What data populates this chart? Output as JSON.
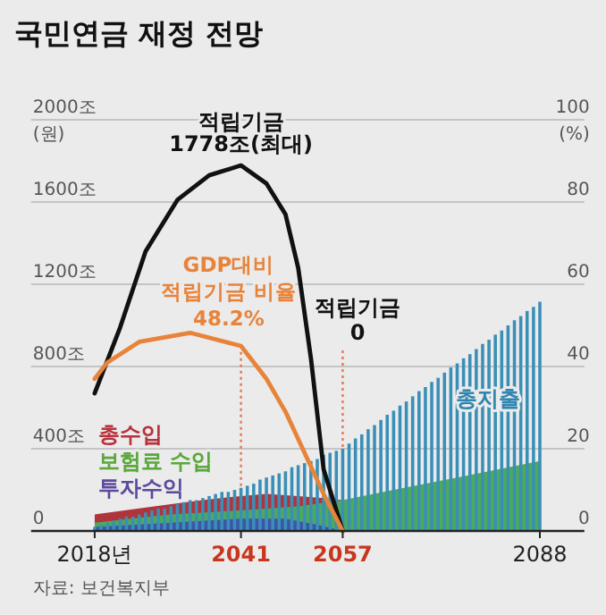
{
  "chart_data": {
    "type": "bar",
    "title": "국민연금 재정 전망",
    "ylabel": "(원)",
    "y2label": "(%)",
    "xlim": [
      2008,
      2095
    ],
    "ylim": [
      0,
      2000
    ],
    "y2lim": [
      0,
      100
    ],
    "xticks": [
      {
        "value": 2018,
        "label": "2018년"
      },
      2041,
      2057,
      2088
    ],
    "yticks": [
      0,
      {
        "value": 400,
        "label": "400조"
      },
      {
        "value": 800,
        "label": "800조"
      },
      {
        "value": 1200,
        "label": "1200조"
      },
      {
        "value": 1600,
        "label": "1600조"
      },
      {
        "value": 2000,
        "label": "2000조"
      }
    ],
    "y2ticks": [
      0,
      20,
      40,
      60,
      80,
      100
    ],
    "grid": "y",
    "legend": false,
    "ref_lines": [
      {
        "axis": "x",
        "value": 2041,
        "color": "#e07a55",
        "line_style": "dotted"
      },
      {
        "axis": "x",
        "value": 2057,
        "color": "#e07a55",
        "line_style": "dotted"
      }
    ],
    "annotations": [
      {
        "text": "1778조(최대)",
        "x": 2041,
        "y": 1778
      },
      "48.2%",
      "적립기금 0",
      "자료: 보건복지부"
    ],
    "series": [
      {
        "name": "적립기금",
        "type": "line",
        "color": "#111111",
        "x": [
          2018,
          2022,
          2026,
          2031,
          2036,
          2041,
          2045,
          2048,
          2050,
          2052,
          2054,
          2057
        ],
        "values": [
          670,
          990,
          1360,
          1610,
          1730,
          1778,
          1690,
          1540,
          1280,
          840,
          300,
          0
        ]
      },
      {
        "name": "GDP대비 적립기금 비율",
        "type": "line",
        "axis": "y2",
        "color": "#e8833a",
        "x": [
          2018,
          2020,
          2025,
          2033,
          2041,
          2045,
          2048,
          2051,
          2054,
          2057
        ],
        "values": [
          37,
          41,
          46,
          48.2,
          45,
          37,
          29,
          19,
          9,
          0
        ]
      },
      {
        "name": "총지출",
        "color": "#3a8fb7",
        "x": [
          2018,
          2019,
          2020,
          2021,
          2022,
          2023,
          2024,
          2025,
          2026,
          2027,
          2028,
          2029,
          2030,
          2031,
          2032,
          2033,
          2034,
          2035,
          2036,
          2037,
          2038,
          2039,
          2040,
          2041,
          2042,
          2043,
          2044,
          2045,
          2046,
          2047,
          2048,
          2049,
          2050,
          2051,
          2052,
          2053,
          2054,
          2055,
          2056,
          2057,
          2058,
          2059,
          2060,
          2061,
          2062,
          2063,
          2064,
          2065,
          2066,
          2067,
          2068,
          2069,
          2070,
          2071,
          2072,
          2073,
          2074,
          2075,
          2076,
          2077,
          2078,
          2079,
          2080,
          2081,
          2082,
          2083,
          2084,
          2085,
          2086,
          2087,
          2088
        ],
        "values": [
          20,
          30,
          40,
          50,
          60,
          70,
          70,
          80,
          90,
          100,
          110,
          110,
          120,
          130,
          140,
          150,
          150,
          160,
          170,
          180,
          190,
          190,
          200,
          210,
          220,
          230,
          250,
          260,
          270,
          280,
          290,
          310,
          320,
          330,
          340,
          350,
          370,
          380,
          390,
          400,
          425,
          450,
          470,
          495,
          515,
          540,
          565,
          585,
          610,
          630,
          655,
          680,
          700,
          725,
          745,
          770,
          795,
          815,
          840,
          860,
          885,
          910,
          930,
          955,
          975,
          1000,
          1025,
          1045,
          1070,
          1090,
          1115
        ]
      },
      {
        "name": "총수입",
        "type": "area",
        "color": "#b0343c",
        "x": [
          2018,
          2025,
          2030,
          2035,
          2041,
          2045,
          2050,
          2054,
          2057
        ],
        "values": [
          80,
          110,
          130,
          150,
          170,
          180,
          170,
          160,
          150
        ]
      },
      {
        "name": "보험료 수입",
        "type": "area",
        "color": "#4caa5a",
        "x": [
          2018,
          2030,
          2041,
          2050,
          2057,
          2065,
          2075,
          2088
        ],
        "values": [
          40,
          80,
          100,
          120,
          150,
          200,
          260,
          340
        ]
      },
      {
        "name": "투자수익",
        "type": "area",
        "color": "#3d55a8",
        "x": [
          2018,
          2030,
          2041,
          2048,
          2053,
          2057
        ],
        "values": [
          20,
          40,
          60,
          60,
          30,
          0
        ]
      }
    ]
  }
}
